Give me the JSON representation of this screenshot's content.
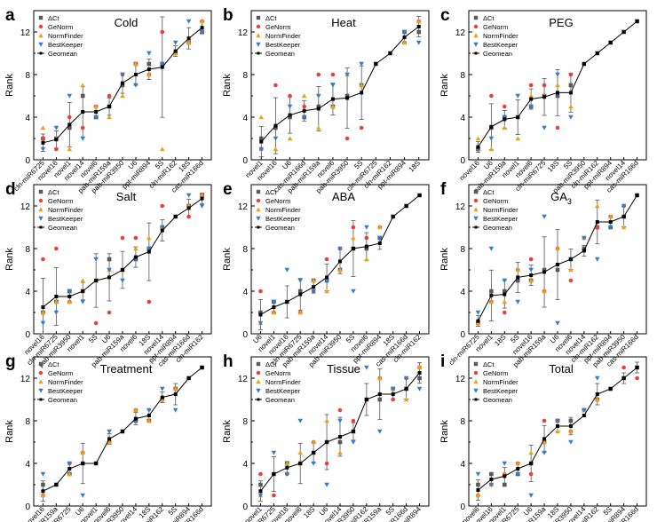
{
  "chart_data": [
    {
      "panel_letter": "a",
      "title": "Cold",
      "type": "scatter+line",
      "ylabel": "Rank",
      "ylim": [
        0,
        14
      ],
      "yticks": [
        0,
        4,
        8,
        12
      ],
      "categories": [
        "cln-miR6725",
        "novel16",
        "novel1",
        "novel14",
        "novel6",
        "pab-miR159a",
        "pab-miR3950",
        "U6",
        "ppt-miR894",
        "5S",
        "cln-miR162",
        "18S",
        "cas-miR166d"
      ],
      "series": [
        {
          "name": "ΔCt",
          "values": [
            2,
            2,
            3,
            6,
            4,
            5,
            7,
            9,
            9,
            9,
            10,
            11,
            12
          ]
        },
        {
          "name": "GeNorm",
          "values": [
            2,
            1,
            4,
            3,
            5,
            6,
            8,
            9,
            8,
            12,
            10,
            11,
            13
          ]
        },
        {
          "name": "NormFinder",
          "values": [
            3,
            2,
            1,
            7,
            5,
            4,
            6,
            9,
            8,
            1,
            10,
            11,
            13
          ]
        },
        {
          "name": "BestKeeper",
          "values": [
            1,
            3,
            6,
            2,
            4,
            5,
            8,
            7,
            10,
            9,
            11,
            13,
            12
          ]
        },
        {
          "name": "Geomean",
          "values": [
            1.6,
            1.9,
            3.3,
            4.5,
            4.5,
            5.0,
            7.2,
            8.0,
            8.5,
            8.7,
            10.2,
            11.4,
            12.4
          ]
        }
      ]
    },
    {
      "panel_letter": "b",
      "title": "Heat",
      "type": "scatter+line",
      "ylabel": "Rank",
      "ylim": [
        0,
        14
      ],
      "yticks": [
        0,
        4,
        8,
        12
      ],
      "categories": [
        "novel1",
        "novel16",
        "U6",
        "cas-miR166d",
        "pab-miR159a",
        "novel6",
        "pab-miR3950",
        "5S",
        "cln-miR6725",
        "cln-miR162",
        "ppt-miR894",
        "18S"
      ],
      "series": [
        {
          "name": "ΔCt",
          "values": [
            2,
            3,
            4,
            4,
            5,
            5,
            6,
            7,
            9,
            10,
            12,
            12
          ]
        },
        {
          "name": "GeNorm",
          "values": [
            1,
            7,
            6,
            5,
            8,
            8,
            2,
            3,
            9,
            10,
            11,
            13
          ]
        },
        {
          "name": "NormFinder",
          "values": [
            4,
            1,
            2,
            6,
            3,
            5,
            8,
            7,
            9,
            10,
            11,
            13
          ]
        },
        {
          "name": "BestKeeper",
          "values": [
            1,
            2,
            5,
            4,
            6,
            7,
            8,
            9,
            9,
            10,
            12,
            11
          ]
        },
        {
          "name": "Geomean",
          "values": [
            1.7,
            3.2,
            4.2,
            4.6,
            4.8,
            5.7,
            5.8,
            6.3,
            9.0,
            10.0,
            11.5,
            12.5
          ]
        }
      ]
    },
    {
      "panel_letter": "c",
      "title": "PEG",
      "type": "scatter+line",
      "ylabel": "Rank",
      "ylim": [
        0,
        14
      ],
      "yticks": [
        0,
        4,
        8,
        12
      ],
      "categories": [
        "novel16",
        "U6",
        "pab-miR159a",
        "novel1",
        "novel6",
        "cln-miR6725",
        "18S",
        "5S",
        "pab-miR3950",
        "cln-miR162",
        "ppt-miR894",
        "novel14",
        "cas-miR166d"
      ],
      "series": [
        {
          "name": "ΔCt",
          "values": [
            1,
            3,
            4,
            4,
            5,
            6,
            6,
            7,
            9,
            10,
            11,
            12,
            13
          ]
        },
        {
          "name": "GeNorm",
          "values": [
            1,
            6,
            5,
            4,
            7,
            7,
            3,
            8,
            9,
            10,
            11,
            12,
            13
          ]
        },
        {
          "name": "NormFinder",
          "values": [
            2,
            1,
            3,
            2,
            6,
            6,
            7,
            5,
            9,
            10,
            11,
            12,
            13
          ]
        },
        {
          "name": "BestKeeper",
          "values": [
            1,
            2,
            4,
            6,
            5,
            3,
            8,
            4,
            9,
            10,
            11,
            12,
            13
          ]
        },
        {
          "name": "Geomean",
          "values": [
            1.2,
            3.1,
            3.8,
            4.0,
            5.7,
            5.9,
            6.3,
            6.3,
            9.0,
            10.0,
            11.0,
            12.0,
            13.0
          ]
        }
      ]
    },
    {
      "panel_letter": "d",
      "title": "Salt",
      "type": "scatter+line",
      "ylabel": "Rank",
      "ylim": [
        0,
        14
      ],
      "yticks": [
        0,
        4,
        8,
        12
      ],
      "categories": [
        "novel16",
        "cln-miR6725",
        "pab-miR3950",
        "novel1",
        "5S",
        "U6",
        "pab-miR159a",
        "novel6",
        "18S",
        "novel14",
        "ppt-miR894",
        "cas-miR166d",
        "cln-miR162"
      ],
      "series": [
        {
          "name": "ΔCt",
          "values": [
            2,
            3,
            4,
            4,
            5,
            7,
            6,
            7,
            8,
            10,
            11,
            12,
            13
          ]
        },
        {
          "name": "GeNorm",
          "values": [
            7,
            8,
            3,
            4,
            1,
            2,
            9,
            9,
            3,
            12,
            11,
            11,
            13
          ]
        },
        {
          "name": "NormFinder",
          "values": [
            2,
            3,
            3,
            5,
            5,
            6,
            6,
            8,
            9,
            10,
            11,
            12,
            13
          ]
        },
        {
          "name": "BestKeeper",
          "values": [
            1,
            2,
            4,
            3,
            7,
            6,
            5,
            7,
            8,
            10,
            11,
            13,
            12
          ]
        },
        {
          "name": "Geomean",
          "values": [
            2.5,
            3.5,
            3.5,
            4.0,
            5.0,
            5.3,
            6.0,
            7.2,
            7.7,
            9.7,
            11.0,
            11.8,
            12.7
          ]
        }
      ]
    },
    {
      "panel_letter": "e",
      "title": "ABA",
      "type": "scatter+line",
      "ylabel": "Rank",
      "ylim": [
        0,
        14
      ],
      "yticks": [
        0,
        4,
        8,
        12
      ],
      "categories": [
        "U6",
        "novel1",
        "novel16",
        "cln-miR6725",
        "pab-miR159a",
        "novel14",
        "pab-miR3950",
        "5S",
        "novel6",
        "ppt-miR894",
        "18S",
        "cas-miR166d",
        "cln-miR162"
      ],
      "series": [
        {
          "name": "ΔCt",
          "values": [
            2,
            3,
            3,
            4,
            5,
            5,
            6,
            8,
            8,
            9,
            11,
            12,
            13
          ]
        },
        {
          "name": "GeNorm",
          "values": [
            4,
            2,
            3,
            2,
            4,
            7,
            8,
            10,
            9,
            10,
            11,
            12,
            13
          ]
        },
        {
          "name": "NormFinder",
          "values": [
            1,
            2,
            3,
            2,
            5,
            4,
            6,
            9,
            7,
            10,
            11,
            12,
            13
          ]
        },
        {
          "name": "BestKeeper",
          "values": [
            1,
            3,
            6,
            5,
            4,
            5,
            8,
            4,
            10,
            9,
            11,
            12,
            13
          ]
        },
        {
          "name": "Geomean",
          "values": [
            1.8,
            2.5,
            3.0,
            3.7,
            4.4,
            5.3,
            6.8,
            8.0,
            8.2,
            8.5,
            11.0,
            12.0,
            13.0
          ]
        }
      ]
    },
    {
      "panel_letter": "f",
      "title": "GA3",
      "title_main": "GA",
      "title_sub": "3",
      "type": "scatter+line",
      "ylabel": "Rank",
      "ylim": [
        0,
        14
      ],
      "yticks": [
        0,
        4,
        8,
        12
      ],
      "categories": [
        "cln-miR6725",
        "novel1",
        "18S",
        "5S",
        "novel16",
        "pab-miR159a",
        "U6",
        "novel6",
        "novel14",
        "cln-miR162",
        "ppt-miR894",
        "pab-miR3950",
        "cas-miR166d"
      ],
      "series": [
        {
          "name": "ΔCt",
          "values": [
            1,
            4,
            4,
            5,
            5,
            6,
            6,
            7,
            8,
            10,
            10,
            11,
            13
          ]
        },
        {
          "name": "GeNorm",
          "values": [
            1,
            3,
            2,
            6,
            7,
            4,
            8,
            5,
            9,
            10,
            11,
            12,
            13
          ]
        },
        {
          "name": "NormFinder",
          "values": [
            1,
            3,
            3,
            6,
            5,
            4,
            8,
            6,
            9,
            12,
            11,
            10,
            13
          ]
        },
        {
          "name": "BestKeeper",
          "values": [
            2,
            8,
            5,
            3,
            6,
            11,
            1,
            7,
            9,
            7,
            10,
            12,
            13
          ]
        },
        {
          "name": "Geomean",
          "values": [
            1.2,
            3.6,
            3.7,
            5.3,
            5.5,
            5.8,
            6.5,
            7.0,
            7.8,
            10.5,
            10.5,
            11.0,
            13.0
          ]
        }
      ]
    },
    {
      "panel_letter": "g",
      "title": "Treatment",
      "type": "scatter+line",
      "ylabel": "Rank",
      "ylim": [
        0,
        14
      ],
      "yticks": [
        0,
        4,
        8,
        12
      ],
      "categories": [
        "novel16",
        "pab-miR159a",
        "cln-miR6725",
        "U6",
        "novel1",
        "novel6",
        "pab-miR3950",
        "novel14",
        "18S",
        "cln-miR162",
        "5S",
        "ppt-miR894",
        "cas-miR166d"
      ],
      "series": [
        {
          "name": "ΔCt",
          "values": [
            2,
            2,
            3,
            4,
            4,
            6,
            7,
            8,
            8,
            10,
            11,
            12,
            13
          ]
        },
        {
          "name": "GeNorm",
          "values": [
            1,
            2,
            4,
            5,
            4,
            6,
            7,
            9,
            8,
            10,
            11,
            12,
            13
          ]
        },
        {
          "name": "NormFinder",
          "values": [
            1,
            2,
            3,
            5,
            4,
            6,
            7,
            9,
            8,
            10,
            11,
            12,
            13
          ]
        },
        {
          "name": "BestKeeper",
          "values": [
            3,
            2,
            4,
            1,
            4,
            7,
            7,
            8,
            9,
            11,
            9,
            12,
            13
          ]
        },
        {
          "name": "Geomean",
          "values": [
            1.4,
            2.0,
            3.5,
            4.0,
            4.0,
            6.3,
            7.0,
            8.2,
            8.5,
            10.2,
            10.5,
            12.0,
            13.0
          ]
        }
      ]
    },
    {
      "panel_letter": "h",
      "title": "Tissue",
      "type": "scatter+line",
      "ylabel": "Rank",
      "ylim": [
        0,
        14
      ],
      "yticks": [
        0,
        4,
        8,
        12
      ],
      "categories": [
        "novel1",
        "cln-miR6725",
        "novel16",
        "novel6",
        "18S",
        "U6",
        "novel14",
        "pab-miR3950",
        "cln-miR162",
        "pab-miR159a",
        "5S",
        "cas-miR166d",
        "ppt-miR894"
      ],
      "series": [
        {
          "name": "ΔCt",
          "values": [
            2,
            3,
            4,
            4,
            5,
            6,
            6,
            7,
            10,
            10,
            11,
            11,
            12
          ]
        },
        {
          "name": "GeNorm",
          "values": [
            3,
            1,
            3,
            4,
            6,
            4,
            9,
            8,
            10,
            12,
            10,
            12,
            13
          ]
        },
        {
          "name": "NormFinder",
          "values": [
            1,
            3,
            4,
            5,
            6,
            8,
            5,
            7,
            10,
            12,
            11,
            10,
            13
          ]
        },
        {
          "name": "BestKeeper",
          "values": [
            1,
            5,
            3,
            8,
            4,
            2,
            8,
            6,
            13,
            7,
            11,
            12,
            11
          ]
        },
        {
          "name": "Geomean",
          "values": [
            1.4,
            3.0,
            3.6,
            4.0,
            5.0,
            6.0,
            6.5,
            7.0,
            10.0,
            10.5,
            10.5,
            11.0,
            12.5
          ]
        }
      ]
    },
    {
      "panel_letter": "i",
      "title": "Total",
      "type": "scatter+line",
      "ylabel": "Rank",
      "ylim": [
        0,
        14
      ],
      "yticks": [
        0,
        4,
        8,
        12
      ],
      "categories": [
        "novel6",
        "novel16",
        "novel1",
        "cln-miR6725",
        "U6",
        "pab-miR159a",
        "18S",
        "pab-miR3950",
        "novel14",
        "cln-miR162",
        "5S",
        "ppt-miR894",
        "cas-miR166d"
      ],
      "series": [
        {
          "name": "ΔCt",
          "values": [
            2,
            3,
            2,
            3,
            4,
            6,
            8,
            8,
            9,
            10,
            11,
            12,
            13
          ]
        },
        {
          "name": "GeNorm",
          "values": [
            1,
            2,
            3,
            4,
            3,
            8,
            8,
            7,
            9,
            10,
            11,
            13,
            12
          ]
        },
        {
          "name": "NormFinder",
          "values": [
            1,
            2,
            3,
            4,
            5,
            6,
            7,
            7,
            9,
            10,
            11,
            12,
            13
          ]
        },
        {
          "name": "BestKeeper",
          "values": [
            3,
            2,
            4,
            3,
            1,
            5,
            8,
            6,
            9,
            12,
            11,
            12,
            13
          ]
        },
        {
          "name": "Geomean",
          "values": [
            1.5,
            2.5,
            2.8,
            3.5,
            4.0,
            6.3,
            7.5,
            7.5,
            8.5,
            10.5,
            11.0,
            12.0,
            13.0
          ]
        }
      ]
    }
  ],
  "legend": [
    {
      "label": "ΔCt",
      "color": "#595959",
      "marker": "square"
    },
    {
      "label": "GeNorm",
      "color": "#e8403a",
      "marker": "circle"
    },
    {
      "label": "NormFinder",
      "color": "#e8a21c",
      "marker": "triangle-up"
    },
    {
      "label": "BestKeeper",
      "color": "#2f7fd0",
      "marker": "triangle-down"
    },
    {
      "label": "Geomean",
      "color": "#000000",
      "marker": "line-square"
    }
  ]
}
